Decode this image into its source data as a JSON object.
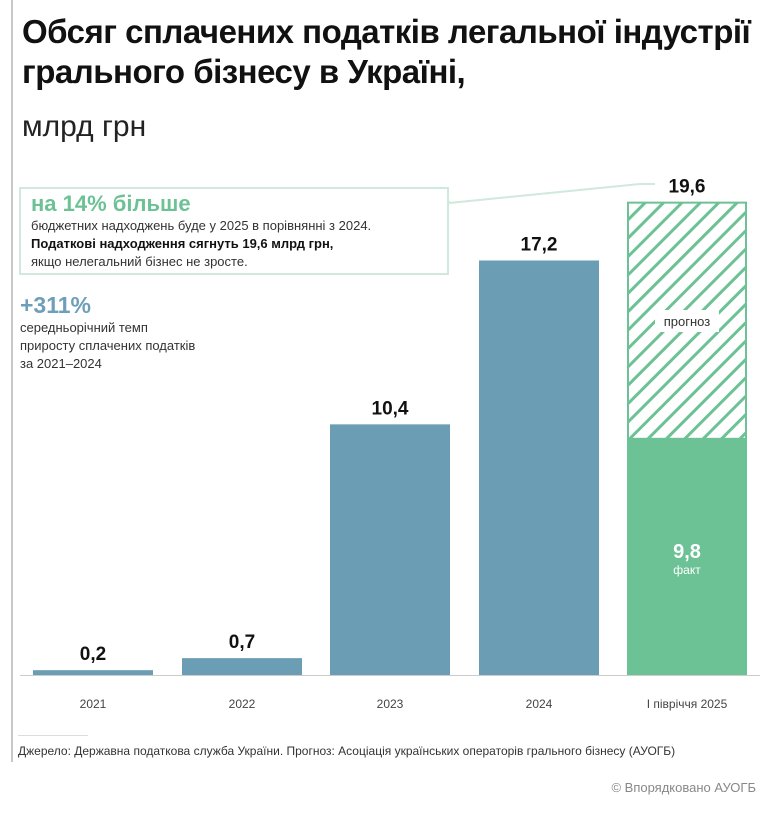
{
  "title": "Обсяг сплачених податків легальної індустрії грального бізнесу в Україні,",
  "subtitle": "млрд грн",
  "callout": {
    "headline": "на 14% більше",
    "line1": "бюджетних надходжень буде у 2025 в порівнянні з 2024.",
    "line2": "Податкові надходження сягнуть 19,6 млрд грн,",
    "line3": "якщо нелегальний бізнес не зросте."
  },
  "stat": {
    "headline": "+311%",
    "line1": "середньорічний темп",
    "line2": "приросту сплачених податків",
    "line3": "за 2021–2024"
  },
  "chart_data": {
    "type": "bar",
    "categories": [
      "2021",
      "2022",
      "2023",
      "2024",
      "І півріччя 2025"
    ],
    "values": [
      0.2,
      0.7,
      10.4,
      17.2,
      19.6
    ],
    "labels": [
      "0,2",
      "0,7",
      "10,4",
      "17,2",
      "19,6"
    ],
    "actual_2025": {
      "value": 9.8,
      "label": "9,8",
      "note": "факт"
    },
    "forecast_note": "прогноз",
    "colors": {
      "bar": "#6b9db5",
      "actual": "#6cc295",
      "forecast": "#6cc295"
    },
    "ylim": [
      0,
      20
    ]
  },
  "source": "Джерело: Державна податкова служба України. Прогноз: Асоціація українських операторів грального бізнесу (АУОГБ)",
  "credit": "© Впорядковано АУОГБ"
}
